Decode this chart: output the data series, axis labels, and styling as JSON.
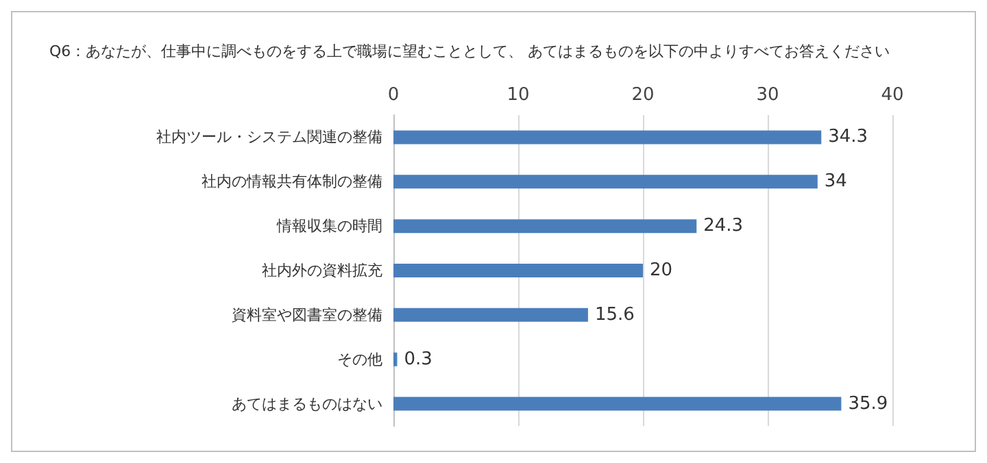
{
  "chart_data": {
    "type": "bar",
    "orientation": "horizontal",
    "title": "Q6：あなたが、仕事中に調べものをする上で職場に望むこととして、 あてはまるものを以下の中よりすべてお答えください",
    "categories": [
      "社内ツール・システム関連の整備",
      "社内の情報共有体制の整備",
      "情報収集の時間",
      "社内外の資料拡充",
      "資料室や図書室の整備",
      "その他",
      "あてはまるものはない"
    ],
    "values": [
      34.3,
      34,
      24.3,
      20,
      15.6,
      0.3,
      35.9
    ],
    "color": "#4a7ebb",
    "xlim": [
      0,
      40
    ],
    "xticks": [
      0,
      10,
      20,
      30,
      40
    ],
    "grid": "x",
    "data_labels": true
  }
}
